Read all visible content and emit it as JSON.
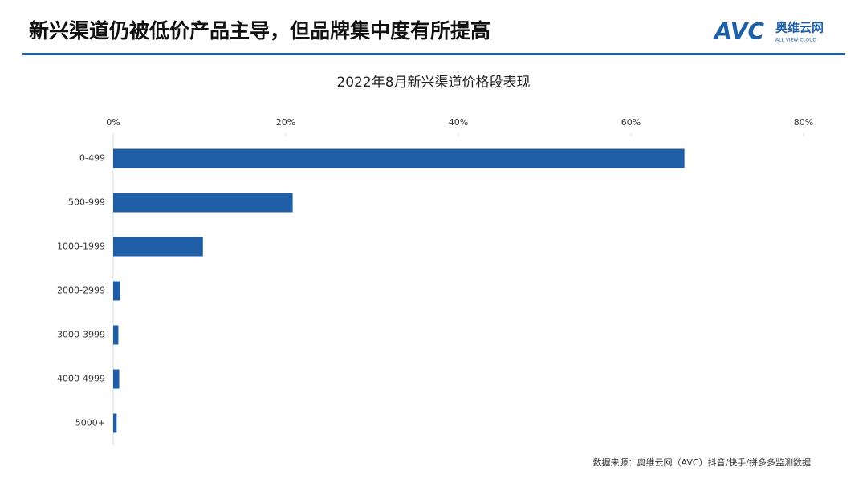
{
  "header": {
    "title": "新兴渠道仍被低价产品主导，但品牌集中度有所提高",
    "logo_mark": "AVC",
    "logo_name": "奥维云网",
    "logo_tagline": "ALL VIEW CLOUD"
  },
  "chart_data": {
    "type": "hbar",
    "title": "2022年8月新兴渠道价格段表现",
    "categories": [
      "0-499",
      "500-999",
      "1000-1999",
      "2000-2999",
      "3000-3999",
      "4000-4999",
      "5000+"
    ],
    "values": [
      66.2,
      20.8,
      10.4,
      0.8,
      0.6,
      0.7,
      0.4
    ],
    "color": "#1f5fa8",
    "xlim": [
      0,
      80
    ],
    "xticks": [
      {
        "value": 0,
        "label": "0%"
      },
      {
        "value": 20,
        "label": "20%"
      },
      {
        "value": 40,
        "label": "40%"
      },
      {
        "value": 60,
        "label": "60%"
      },
      {
        "value": 80,
        "label": "80%"
      }
    ],
    "source": "数据来源：奥维云网（AVC）抖音/快手/拼多多监测数据"
  }
}
